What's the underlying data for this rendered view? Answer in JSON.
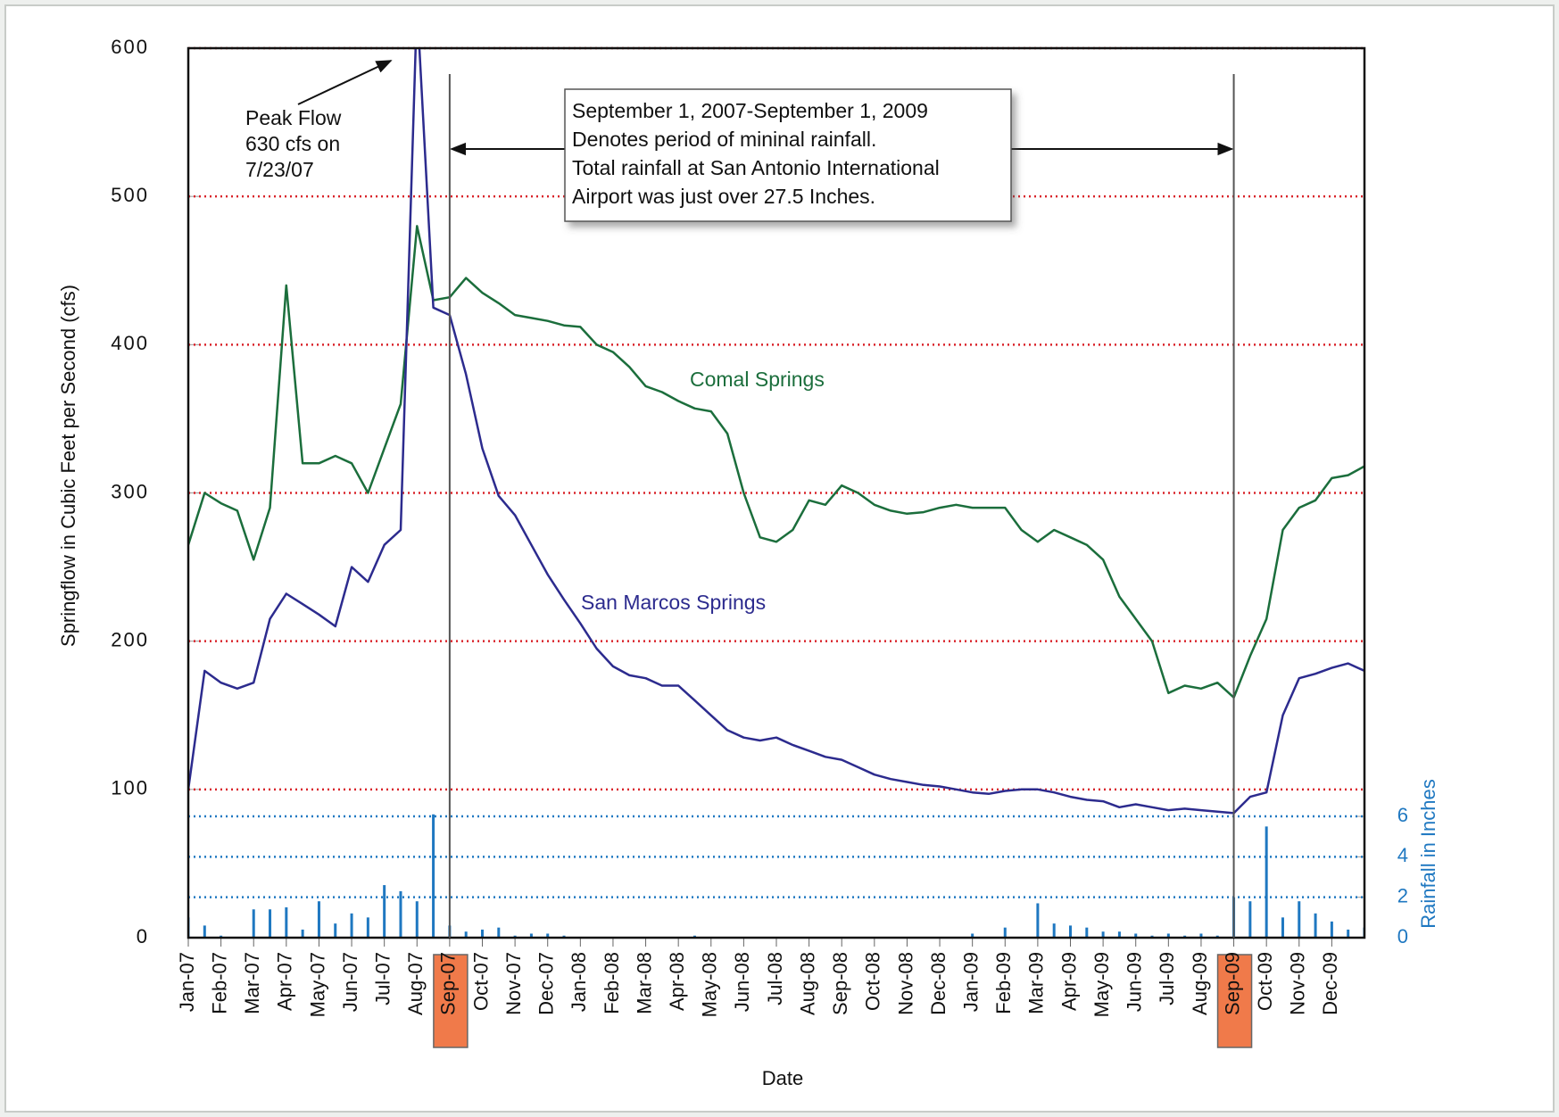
{
  "chart_data": {
    "type": "line",
    "ylabel": "Springflow in Cubic Feet per Second (cfs)",
    "y2label": "Rainfall in Inches",
    "xlabel": "Date",
    "categories": [
      "Jan-07",
      null,
      "Feb-07",
      null,
      "Mar-07",
      null,
      "Apr-07",
      null,
      "May-07",
      null,
      "Jun-07",
      null,
      "Jul-07",
      null,
      "Aug-07",
      null,
      "Sep-07",
      null,
      "Oct-07",
      null,
      "Nov-07",
      null,
      "Dec-07",
      null,
      "Jan-08",
      null,
      "Feb-08",
      null,
      "Mar-08",
      null,
      "Apr-08",
      null,
      "May-08",
      null,
      "Jun-08",
      null,
      "Jul-08",
      null,
      "Aug-08",
      null,
      "Sep-08",
      null,
      "Oct-08",
      null,
      "Nov-08",
      null,
      "Dec-08",
      null,
      "Jan-09",
      null,
      "Feb-09",
      null,
      "Mar-09",
      null,
      "Apr-09",
      null,
      "May-09",
      null,
      "Jun-09",
      null,
      "Jul-09",
      null,
      "Aug-09",
      null,
      "Sep-09",
      null,
      "Oct-09",
      null,
      "Nov-09",
      null,
      "Dec-09",
      null,
      null
    ],
    "series": [
      {
        "name": "Comal Springs",
        "color": "#1b6e3c",
        "values": [
          265,
          300,
          293,
          288,
          255,
          290,
          440,
          320,
          320,
          325,
          320,
          300,
          330,
          360,
          480,
          430,
          432,
          445,
          435,
          428,
          420,
          418,
          416,
          413,
          412,
          400,
          395,
          385,
          372,
          368,
          362,
          357,
          355,
          340,
          300,
          270,
          267,
          275,
          295,
          292,
          305,
          300,
          292,
          288,
          286,
          287,
          290,
          292,
          290,
          290,
          290,
          275,
          267,
          275,
          270,
          265,
          255,
          230,
          215,
          200,
          165,
          170,
          168,
          172,
          162,
          190,
          215,
          275,
          290,
          295,
          310,
          312,
          318
        ]
      },
      {
        "name": "San Marcos Springs",
        "color": "#2c2b8e",
        "values": [
          100,
          180,
          172,
          168,
          172,
          215,
          232,
          225,
          218,
          210,
          250,
          240,
          265,
          275,
          630,
          425,
          420,
          380,
          330,
          298,
          285,
          265,
          245,
          228,
          212,
          195,
          183,
          177,
          175,
          170,
          170,
          160,
          150,
          140,
          135,
          133,
          135,
          130,
          126,
          122,
          120,
          115,
          110,
          107,
          105,
          103,
          102,
          100,
          98,
          97,
          99,
          100,
          100,
          98,
          95,
          93,
          92,
          88,
          90,
          88,
          86,
          87,
          86,
          85,
          84,
          95,
          98,
          150,
          175,
          178,
          182,
          185,
          180
        ]
      },
      {
        "name": "Rainfall",
        "type": "bar",
        "axis": "y2",
        "color": "#1f78c1",
        "values": [
          1.0,
          0.6,
          0.1,
          0,
          1.4,
          1.4,
          1.5,
          0.4,
          1.8,
          0.7,
          1.2,
          1.0,
          2.6,
          2.3,
          1.8,
          6.1,
          0.6,
          0.3,
          0.4,
          0.5,
          0.1,
          0.2,
          0.2,
          0.1,
          0,
          0,
          0,
          0,
          0,
          0,
          0,
          0.1,
          0,
          0,
          0,
          0,
          0,
          0,
          0,
          0,
          0,
          0,
          0,
          0,
          0,
          0,
          0,
          0,
          0.2,
          0,
          0.5,
          0,
          1.7,
          0.7,
          0.6,
          0.5,
          0.3,
          0.3,
          0.2,
          0.1,
          0.2,
          0.1,
          0.2,
          0.1,
          2.0,
          1.8,
          5.5,
          1.0,
          1.8,
          1.2,
          0.8,
          0.4,
          0.5
        ]
      }
    ],
    "ylim": [
      0,
      600
    ],
    "yticks": [
      0,
      100,
      200,
      300,
      400,
      500,
      600
    ],
    "y2lim": [
      0,
      44
    ],
    "y2ticks": [
      0,
      2,
      4,
      6
    ],
    "grid": true,
    "grid_color": "#d9232a",
    "y2grid_color": "#1f78c1",
    "highlight_categories": [
      16,
      64
    ],
    "highlight_color": "#f07a4a",
    "annotations": {
      "peak": [
        "Peak Flow",
        "630 cfs on",
        "7/23/07"
      ],
      "period": [
        "September 1, 2007-September 1, 2009",
        "Denotes period of mininal rainfall.",
        "Total rainfall at San Antonio International",
        "Airport was just over 27.5 Inches."
      ]
    }
  }
}
